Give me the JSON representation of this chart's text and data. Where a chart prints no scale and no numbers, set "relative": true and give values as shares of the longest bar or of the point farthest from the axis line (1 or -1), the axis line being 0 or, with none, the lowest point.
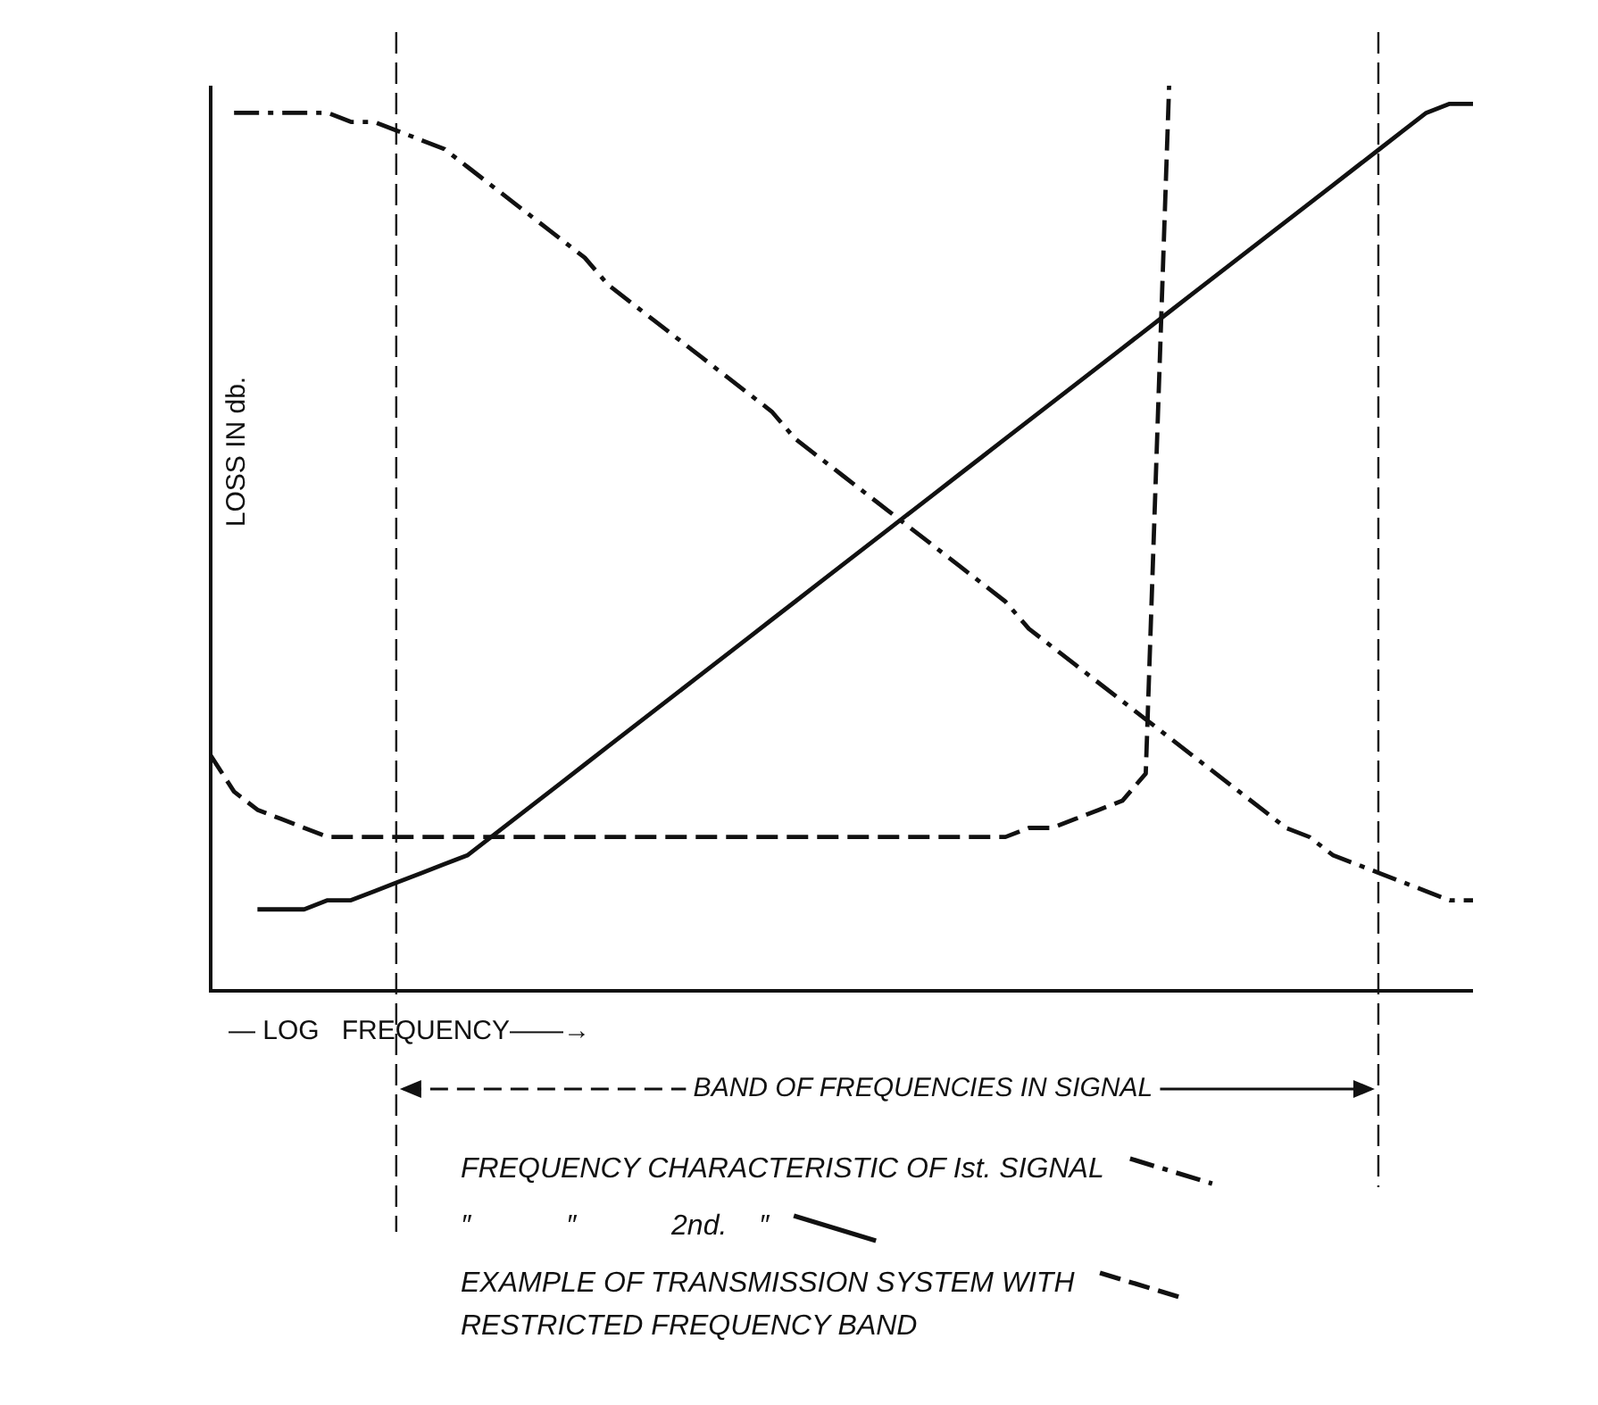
{
  "chart_data": {
    "type": "line",
    "relative": true,
    "xlabel": "— LOG   FREQUENCY——→",
    "ylabel": "LOSS IN db.",
    "legend": "bottom",
    "marker": "none",
    "categories": [
      null,
      null,
      null,
      null,
      null,
      null,
      null,
      null,
      null,
      null,
      null,
      null,
      null,
      null,
      null,
      null,
      null,
      null,
      null,
      null,
      null,
      null,
      null,
      null,
      null,
      null,
      null,
      null,
      null,
      null,
      null,
      null,
      null,
      null,
      null,
      null,
      null,
      null,
      null,
      null,
      null,
      null,
      null,
      null,
      null,
      null,
      null,
      null,
      null,
      null,
      null,
      null,
      null,
      null,
      null
    ],
    "annotations": [
      "BAND OF FREQUENCIES IN SIGNAL"
    ],
    "series": [
      {
        "name": "FREQUENCY CHARACTERISTIC OF Ist. SIGNAL",
        "color": "#111111",
        "line_style": "dashdot",
        "values": [
          null,
          0.97,
          0.97,
          0.97,
          0.97,
          0.97,
          0.96,
          0.96,
          0.95,
          0.94,
          0.93,
          0.91,
          0.89,
          0.87,
          0.85,
          0.83,
          0.81,
          0.78,
          0.76,
          0.74,
          0.72,
          0.7,
          0.68,
          0.66,
          0.64,
          0.61,
          0.59,
          0.57,
          0.55,
          0.53,
          0.51,
          0.49,
          0.47,
          0.45,
          0.43,
          0.4,
          0.38,
          0.36,
          0.34,
          0.32,
          0.3,
          0.28,
          0.26,
          0.24,
          0.22,
          0.2,
          0.18,
          0.17,
          0.15,
          0.14,
          0.13,
          0.12,
          0.11,
          0.1,
          0.1
        ]
      },
      {
        "name": "″            ″            2nd.    ″",
        "color": "#111111",
        "line_style": "solid",
        "values": [
          null,
          null,
          0.09,
          0.09,
          0.09,
          0.1,
          0.1,
          0.11,
          0.12,
          0.13,
          0.14,
          0.15,
          0.17,
          0.19,
          0.21,
          0.23,
          0.25,
          0.27,
          0.29,
          0.31,
          0.33,
          0.35,
          0.37,
          0.39,
          0.41,
          0.43,
          0.45,
          0.47,
          0.49,
          0.51,
          0.53,
          0.55,
          0.57,
          0.59,
          0.61,
          0.63,
          0.65,
          0.67,
          0.69,
          0.71,
          0.73,
          0.75,
          0.77,
          0.79,
          0.81,
          0.83,
          0.85,
          0.87,
          0.89,
          0.91,
          0.93,
          0.95,
          0.97,
          0.98,
          0.98
        ]
      },
      {
        "name": "EXAMPLE OF TRANSMISSION SYSTEM WITH RESTRICTED FREQUENCY BAND",
        "color": "#111111",
        "line_style": "dashed",
        "values": [
          0.26,
          0.22,
          0.2,
          0.19,
          0.18,
          0.17,
          0.17,
          0.17,
          0.17,
          0.17,
          0.17,
          0.17,
          0.17,
          0.17,
          0.17,
          0.17,
          0.17,
          0.17,
          0.17,
          0.17,
          0.17,
          0.17,
          0.17,
          0.17,
          0.17,
          0.17,
          0.17,
          0.17,
          0.17,
          0.17,
          0.17,
          0.17,
          0.17,
          0.17,
          0.17,
          0.18,
          0.18,
          0.19,
          0.2,
          0.21,
          0.24,
          1.0,
          null,
          null,
          null,
          null,
          null,
          null,
          null,
          null,
          null,
          null,
          null,
          null,
          null
        ]
      }
    ]
  }
}
